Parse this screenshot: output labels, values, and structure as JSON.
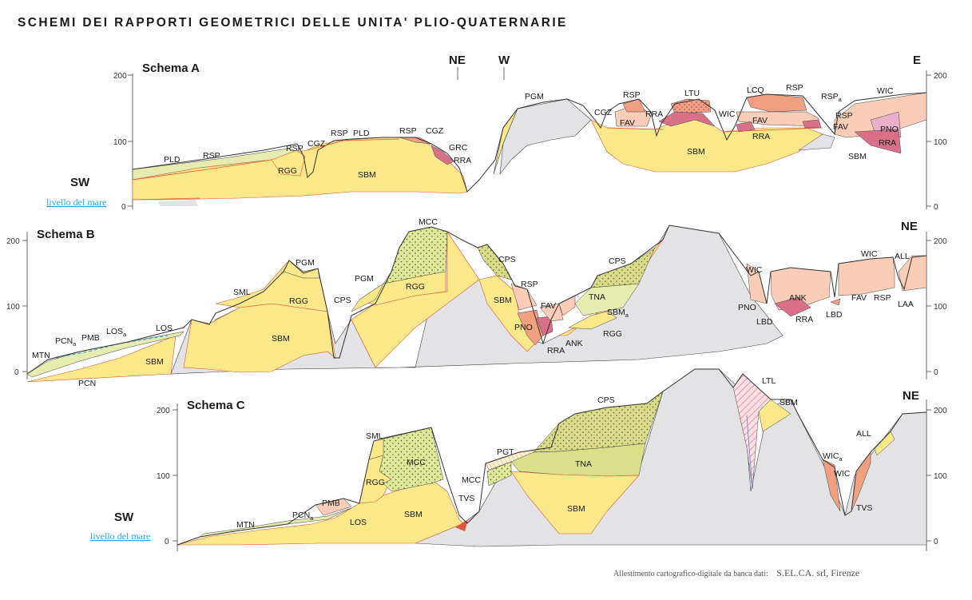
{
  "title": "SCHEMI DEI RAPPORTI GEOMETRICI DELLE UNITA' PLIO-QUATERNARIE",
  "schema_a": {
    "title": "Schema A",
    "sw": "SW",
    "ne": "NE",
    "w": "W",
    "e": "E",
    "sea_level": "livello del mare",
    "ticks": [
      "200",
      "100",
      "0"
    ]
  },
  "schema_b": {
    "title": "Schema B",
    "ne": "NE",
    "ticks": [
      "200",
      "100",
      "0"
    ]
  },
  "schema_c": {
    "title": "Schema C",
    "sw": "SW",
    "ne": "NE",
    "sea_level": "livello del mare",
    "ticks": [
      "200",
      "100",
      "0"
    ]
  },
  "credit": {
    "prefix": "Allestimento cartografico-digitale da banca dati:",
    "name": "S.EL.CA. srl, Firenze"
  },
  "colors": {
    "sbm_yellow": "#fbe88a",
    "grey_substrate": "#e3e3e5",
    "pink_light": "#f9cdb8",
    "salmon": "#f0a080",
    "magenta": "#d8708a",
    "green_pale": "#e6ecb0",
    "green_olive": "#d8e08a",
    "red_line": "#e0553b"
  },
  "labels": {
    "PLD": "PLD",
    "RSP": "RSP",
    "RGG": "RGG",
    "SBM": "SBM",
    "CGZ": "CGZ",
    "GRC": "GRC",
    "RRA": "RRA",
    "PGM": "PGM",
    "FAV": "FAV",
    "LTU": "LTU",
    "WIC": "WIC",
    "LCQ": "LCQ",
    "PNO": "PNO",
    "MCC": "MCC",
    "SML": "SML",
    "CPS": "CPS",
    "TNA": "TNA",
    "ANK": "ANK",
    "LBD": "LBD",
    "ALL": "ALL",
    "LAA": "LAA",
    "LOS": "LOS",
    "PMB": "PMB",
    "PCN": "PCN",
    "MTN": "MTN",
    "PGT": "PGT",
    "TVS": "TVS",
    "LTL": "LTL",
    "RSPa_base": "RSP",
    "RSPa_sub": "a",
    "PCNa_base": "PCN",
    "PCNa_sub": "a",
    "LOSa_base": "LOS",
    "LOSa_sub": "a",
    "SBMa_base": "SBM",
    "SBMa_sub": "a",
    "WICa_base": "WIC",
    "WICa_sub": "a"
  }
}
